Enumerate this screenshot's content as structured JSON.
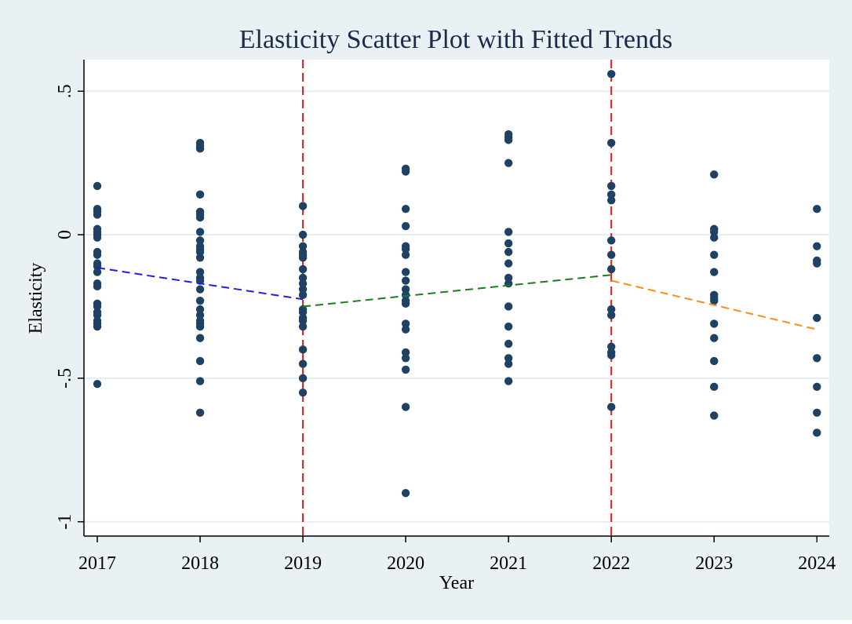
{
  "colors": {
    "background": "#eaf1f4",
    "plot_background": "#ffffff",
    "grid": "#e3edf2",
    "points": "#1f4164",
    "title": "#1a2b4c",
    "axis": "#000000",
    "vline": "#e31a1c"
  },
  "chart_data": {
    "type": "scatter",
    "title": "Elasticity Scatter Plot with Fitted Trends",
    "xlabel": "Year",
    "ylabel": "Elasticity",
    "xlim": [
      2016.87,
      2024.12
    ],
    "ylim": [
      -1.05,
      0.61
    ],
    "x_ticks": [
      2017,
      2018,
      2019,
      2020,
      2021,
      2022,
      2023,
      2024
    ],
    "y_ticks": [
      {
        "value": 0.5,
        "label": ".5"
      },
      {
        "value": 0,
        "label": "0"
      },
      {
        "value": -0.5,
        "label": "-.5"
      },
      {
        "value": -1,
        "label": "-1"
      }
    ],
    "grid": true,
    "legend": "none",
    "vertical_lines": [
      {
        "x": 2019,
        "color": "#e31a1c",
        "style": "dashed"
      },
      {
        "x": 2022,
        "color": "#e31a1c",
        "style": "dashed"
      }
    ],
    "points": [
      {
        "x": 2017,
        "y": [
          0.17,
          0.09,
          0.08,
          0.07,
          0.02,
          0.01,
          0.0,
          -0.01,
          -0.06,
          -0.07,
          -0.1,
          -0.11,
          -0.13,
          -0.17,
          -0.18,
          -0.24,
          -0.25,
          -0.27,
          -0.28,
          -0.3,
          -0.31,
          -0.32,
          -0.52
        ]
      },
      {
        "x": 2018,
        "y": [
          0.32,
          0.31,
          0.3,
          0.14,
          0.08,
          0.07,
          0.06,
          0.01,
          -0.02,
          -0.04,
          -0.05,
          -0.06,
          -0.08,
          -0.13,
          -0.15,
          -0.16,
          -0.19,
          -0.23,
          -0.26,
          -0.28,
          -0.3,
          -0.31,
          -0.32,
          -0.36,
          -0.44,
          -0.51,
          -0.62
        ]
      },
      {
        "x": 2019,
        "y": [
          0.1,
          0.0,
          -0.04,
          -0.06,
          -0.07,
          -0.08,
          -0.12,
          -0.15,
          -0.17,
          -0.19,
          -0.21,
          -0.26,
          -0.27,
          -0.29,
          -0.3,
          -0.32,
          -0.4,
          -0.45,
          -0.5,
          -0.55
        ]
      },
      {
        "x": 2020,
        "y": [
          0.23,
          0.22,
          0.09,
          0.03,
          -0.04,
          -0.05,
          -0.07,
          -0.13,
          -0.16,
          -0.19,
          -0.21,
          -0.23,
          -0.24,
          -0.31,
          -0.33,
          -0.41,
          -0.43,
          -0.47,
          -0.6,
          -0.9
        ]
      },
      {
        "x": 2021,
        "y": [
          0.35,
          0.34,
          0.33,
          0.25,
          0.01,
          -0.03,
          -0.06,
          -0.1,
          -0.15,
          -0.17,
          -0.25,
          -0.32,
          -0.38,
          -0.43,
          -0.45,
          -0.51
        ]
      },
      {
        "x": 2022,
        "y": [
          0.56,
          0.32,
          0.17,
          0.14,
          0.12,
          -0.02,
          -0.07,
          -0.12,
          -0.26,
          -0.28,
          -0.39,
          -0.41,
          -0.42,
          -0.6
        ]
      },
      {
        "x": 2023,
        "y": [
          0.21,
          0.02,
          0.01,
          -0.01,
          -0.07,
          -0.13,
          -0.21,
          -0.22,
          -0.23,
          -0.31,
          -0.36,
          -0.44,
          -0.53,
          -0.63
        ]
      },
      {
        "x": 2024,
        "y": [
          0.09,
          -0.04,
          -0.09,
          -0.1,
          -0.29,
          -0.43,
          -0.53,
          -0.62,
          -0.69
        ]
      }
    ],
    "trend_lines": [
      {
        "x": [
          2017,
          2019
        ],
        "y": [
          -0.115,
          -0.225
        ],
        "color": "#1f1fe0",
        "style": "dashed"
      },
      {
        "x": [
          2019,
          2022
        ],
        "y": [
          -0.25,
          -0.14
        ],
        "color": "#1a7f1a",
        "style": "dashed"
      },
      {
        "x": [
          2022,
          2024
        ],
        "y": [
          -0.16,
          -0.33
        ],
        "color": "#ff8c1a",
        "style": "dashed"
      }
    ]
  }
}
